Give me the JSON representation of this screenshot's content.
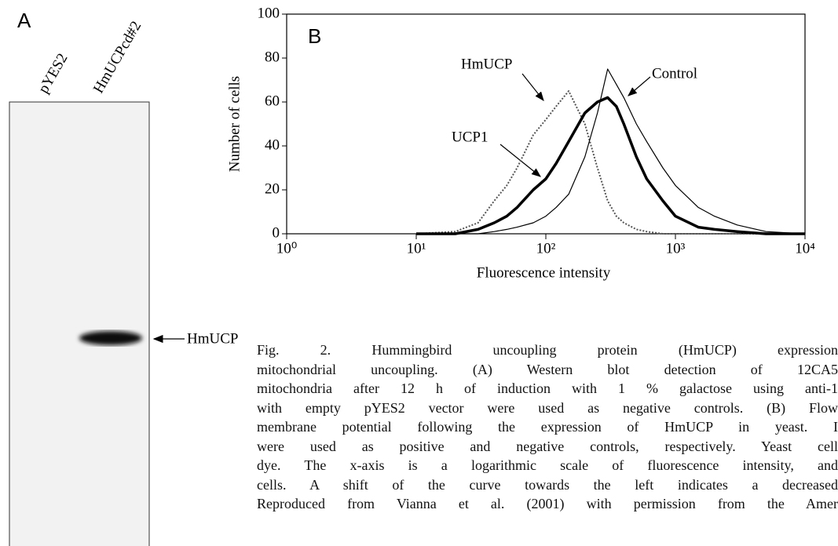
{
  "panel_a": {
    "label": "A",
    "lanes": [
      "pYES2",
      "HmUCPcd#2"
    ],
    "band_label": "HmUCP"
  },
  "chart_data": {
    "type": "line",
    "panel_label": "B",
    "x_label": "Fluorescence intensity",
    "y_label": "Number of cells",
    "xscale": "log",
    "xlim": [
      1,
      10000
    ],
    "xticks": [
      {
        "value": 1,
        "label": "10⁰"
      },
      {
        "value": 10,
        "label": "10¹"
      },
      {
        "value": 100,
        "label": "10²"
      },
      {
        "value": 1000,
        "label": "10³"
      },
      {
        "value": 10000,
        "label": "10⁴"
      }
    ],
    "ylim": [
      0,
      100
    ],
    "yticks": [
      0,
      20,
      40,
      60,
      80,
      100
    ],
    "x": [
      10,
      20,
      30,
      40,
      50,
      60,
      80,
      100,
      120,
      150,
      200,
      250,
      300,
      350,
      400,
      500,
      600,
      800,
      1000,
      1500,
      2000,
      3000,
      5000,
      10000
    ],
    "series": [
      {
        "name": "HmUCP",
        "color": "#555555",
        "line_width": 2,
        "dashed": true,
        "values": [
          0,
          1,
          5,
          15,
          22,
          30,
          45,
          52,
          58,
          65,
          50,
          30,
          15,
          8,
          5,
          2,
          1,
          0,
          0,
          0,
          0,
          0,
          0,
          0
        ]
      },
      {
        "name": "UCP1",
        "color": "#000000",
        "line_width": 3.5,
        "dashed": false,
        "values": [
          0,
          0,
          2,
          5,
          8,
          12,
          20,
          25,
          32,
          42,
          55,
          60,
          62,
          58,
          50,
          35,
          25,
          15,
          8,
          3,
          2,
          1,
          0,
          0
        ]
      },
      {
        "name": "Control",
        "color": "#000000",
        "line_width": 1.2,
        "dashed": false,
        "values": [
          0,
          0,
          0,
          1,
          2,
          3,
          5,
          8,
          12,
          18,
          35,
          55,
          75,
          68,
          62,
          50,
          42,
          30,
          22,
          12,
          8,
          4,
          1,
          0
        ]
      }
    ]
  },
  "caption": {
    "lines": [
      "Fig. 2. Hummingbird uncoupling protein (HmUCP) expression",
      "mitochondrial uncoupling. (A) Western blot detection of 12CA5",
      "mitochondria after 12 h of induction with 1 % galactose using anti-1",
      "with empty pYES2 vector were used as negative controls. (B) Flow",
      "membrane potential following the expression of HmUCP in yeast. I",
      "were used as positive and negative controls, respectively. Yeast cell",
      "dye. The x-axis is a logarithmic scale of fluorescence intensity, and",
      "cells. A shift of the curve towards the left indicates a decreased",
      "Reproduced from Vianna et al. (2001) with permission from the Amer"
    ]
  }
}
